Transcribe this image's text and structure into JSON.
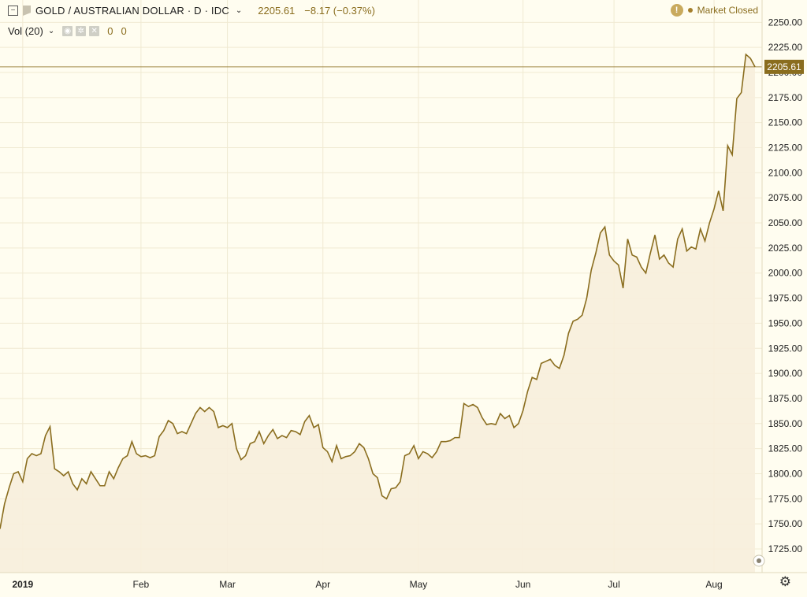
{
  "header": {
    "symbol": "GOLD / AUSTRALIAN DOLLAR · D · IDC",
    "last": "2205.61",
    "change": "−8.17 (−0.37%)",
    "vol_label": "Vol (20)",
    "vol_a": "0",
    "vol_b": "0",
    "market_status": "Market Closed",
    "info_icon": "info-icon",
    "settings_icon": "gear-icon"
  },
  "colors": {
    "line": "#8a6d1e",
    "fill": "#f7eedb",
    "background": "#fffdf0",
    "grid": "#f0ead2",
    "price_label_bg": "#8a6d1e"
  },
  "chart_data": {
    "type": "area",
    "title": "GOLD / AUSTRALIAN DOLLAR",
    "ylim": [
      1700,
      2250
    ],
    "yticks": [
      1725,
      1750,
      1775,
      1800,
      1825,
      1850,
      1875,
      1900,
      1925,
      1950,
      1975,
      2000,
      2025,
      2050,
      2075,
      2100,
      2125,
      2150,
      2175,
      2200,
      2225,
      2250
    ],
    "ytick_labels": [
      "1725.00",
      "1750.00",
      "1775.00",
      "1800.00",
      "1825.00",
      "1850.00",
      "1875.00",
      "1900.00",
      "1925.00",
      "1950.00",
      "1975.00",
      "2000.00",
      "2025.00",
      "2050.00",
      "2075.00",
      "2100.00",
      "2125.00",
      "2150.00",
      "2175.00",
      "2200.00",
      "2225.00",
      "2250.00"
    ],
    "xticks": [
      {
        "label": "2019",
        "index": 5
      },
      {
        "label": "Feb",
        "index": 31
      },
      {
        "label": "Mar",
        "index": 50
      },
      {
        "label": "Apr",
        "index": 71
      },
      {
        "label": "May",
        "index": 92
      },
      {
        "label": "Jun",
        "index": 115
      },
      {
        "label": "Jul",
        "index": 135
      },
      {
        "label": "Aug",
        "index": 157
      }
    ],
    "last_price": 2205.61,
    "last_price_label": "2205.61",
    "values": [
      1745,
      1770,
      1786,
      1800,
      1802,
      1792,
      1815,
      1820,
      1818,
      1820,
      1838,
      1847,
      1805,
      1802,
      1798,
      1802,
      1790,
      1784,
      1795,
      1790,
      1802,
      1795,
      1788,
      1788,
      1802,
      1795,
      1806,
      1815,
      1818,
      1832,
      1820,
      1817,
      1818,
      1816,
      1818,
      1837,
      1843,
      1853,
      1850,
      1840,
      1842,
      1840,
      1850,
      1860,
      1866,
      1862,
      1866,
      1862,
      1846,
      1848,
      1846,
      1850,
      1825,
      1814,
      1818,
      1830,
      1832,
      1842,
      1830,
      1838,
      1844,
      1835,
      1838,
      1836,
      1843,
      1842,
      1839,
      1852,
      1858,
      1846,
      1849,
      1826,
      1822,
      1812,
      1828,
      1815,
      1817,
      1818,
      1822,
      1830,
      1826,
      1815,
      1800,
      1796,
      1778,
      1775,
      1785,
      1786,
      1792,
      1818,
      1820,
      1828,
      1815,
      1822,
      1820,
      1816,
      1822,
      1832,
      1832,
      1833,
      1836,
      1836,
      1870,
      1867,
      1869,
      1866,
      1856,
      1849,
      1850,
      1849,
      1860,
      1855,
      1858,
      1846,
      1850,
      1863,
      1882,
      1896,
      1894,
      1910,
      1912,
      1914,
      1908,
      1905,
      1918,
      1940,
      1952,
      1954,
      1958,
      1975,
      2003,
      2020,
      2040,
      2046,
      2018,
      2012,
      2008,
      1985,
      2034,
      2018,
      2016,
      2006,
      2000,
      2020,
      2038,
      2014,
      2018,
      2010,
      2006,
      2034,
      2044,
      2022,
      2026,
      2024,
      2044,
      2032,
      2050,
      2064,
      2082,
      2062,
      2127,
      2118,
      2174,
      2180,
      2218,
      2214,
      2205.61
    ]
  }
}
